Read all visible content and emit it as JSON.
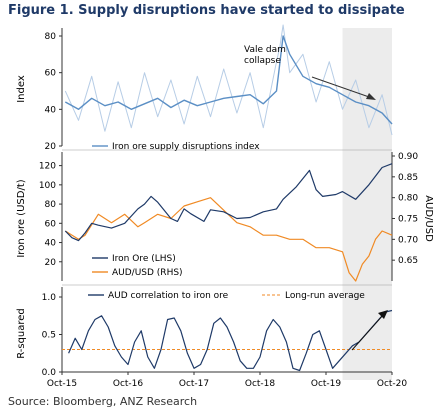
{
  "figure_title": "Figure 1. Supply disruptions have started to dissipate",
  "source": "Source: Bloomberg, ANZ Research",
  "chart_data": [
    {
      "type": "line",
      "ylabel": "Index",
      "ylim": [
        20,
        80
      ],
      "yticks": [
        "80",
        "60",
        "40",
        "20"
      ],
      "legend": [
        {
          "name": "Iron ore supply disruptions index",
          "color": "#5b8fc5"
        }
      ],
      "annotation": "Vale dam\ncollapse",
      "series": [
        {
          "name": "Iron ore supply disruptions index",
          "color": "#5b8fc5",
          "x": [
            2015.8,
            2016.0,
            2016.2,
            2016.4,
            2016.6,
            2016.8,
            2017.0,
            2017.2,
            2017.4,
            2017.6,
            2017.8,
            2018.0,
            2018.2,
            2018.4,
            2018.6,
            2018.8,
            2019.0,
            2019.05,
            2019.1,
            2019.2,
            2019.4,
            2019.6,
            2019.8,
            2020.0,
            2020.2,
            2020.4,
            2020.6,
            2020.75
          ],
          "y": [
            44,
            40,
            46,
            42,
            44,
            40,
            43,
            46,
            41,
            45,
            42,
            44,
            46,
            47,
            48,
            43,
            50,
            65,
            80,
            70,
            58,
            54,
            52,
            48,
            44,
            42,
            38,
            32
          ]
        },
        {
          "name": "raw",
          "color": "#b7cde6",
          "x": [
            2015.8,
            2016.0,
            2016.2,
            2016.4,
            2016.6,
            2016.8,
            2017.0,
            2017.2,
            2017.4,
            2017.6,
            2017.8,
            2018.0,
            2018.2,
            2018.4,
            2018.6,
            2018.8,
            2019.0,
            2019.05,
            2019.1,
            2019.2,
            2019.4,
            2019.6,
            2019.8,
            2020.0,
            2020.2,
            2020.4,
            2020.6,
            2020.75
          ],
          "y": [
            50,
            34,
            58,
            28,
            55,
            30,
            60,
            36,
            56,
            32,
            58,
            36,
            62,
            38,
            60,
            30,
            66,
            74,
            86,
            60,
            70,
            44,
            66,
            40,
            56,
            30,
            48,
            26
          ]
        }
      ]
    },
    {
      "type": "line",
      "ylabel": "Iron ore (USD/t)",
      "y2label": "AUD/USD",
      "ylim": [
        0,
        130
      ],
      "y2lim": [
        0.6,
        0.9
      ],
      "yticks": [
        "120",
        "100",
        "80",
        "60",
        "40",
        "20"
      ],
      "y2ticks": [
        "0.90",
        "0.85",
        "0.80",
        "0.75",
        "0.70",
        "0.65"
      ],
      "legend": [
        {
          "name": "Iron Ore (LHS)",
          "color": "#1f3a68"
        },
        {
          "name": "AUD/USD (RHS)",
          "color": "#f08a24"
        }
      ],
      "series": [
        {
          "name": "Iron Ore (LHS)",
          "axis": "left",
          "color": "#1f3a68",
          "x": [
            2015.8,
            2015.9,
            2016.0,
            2016.1,
            2016.2,
            2016.3,
            2016.5,
            2016.7,
            2016.9,
            2017.0,
            2017.1,
            2017.2,
            2017.4,
            2017.5,
            2017.6,
            2017.7,
            2017.9,
            2018.0,
            2018.2,
            2018.4,
            2018.6,
            2018.8,
            2019.0,
            2019.1,
            2019.3,
            2019.5,
            2019.6,
            2019.7,
            2019.9,
            2020.0,
            2020.2,
            2020.4,
            2020.6,
            2020.75
          ],
          "y": [
            52,
            45,
            42,
            50,
            60,
            58,
            55,
            60,
            75,
            80,
            88,
            82,
            65,
            62,
            75,
            70,
            62,
            74,
            72,
            65,
            66,
            72,
            75,
            85,
            98,
            115,
            95,
            88,
            90,
            93,
            85,
            100,
            118,
            122
          ]
        },
        {
          "name": "AUD/USD (RHS)",
          "axis": "right",
          "color": "#f08a24",
          "x": [
            2015.8,
            2016.0,
            2016.1,
            2016.3,
            2016.5,
            2016.7,
            2016.9,
            2017.0,
            2017.2,
            2017.4,
            2017.6,
            2017.8,
            2018.0,
            2018.2,
            2018.4,
            2018.6,
            2018.8,
            2019.0,
            2019.2,
            2019.4,
            2019.6,
            2019.8,
            2020.0,
            2020.1,
            2020.2,
            2020.3,
            2020.4,
            2020.5,
            2020.6,
            2020.75
          ],
          "y": [
            0.72,
            0.7,
            0.71,
            0.76,
            0.74,
            0.76,
            0.73,
            0.74,
            0.76,
            0.75,
            0.78,
            0.79,
            0.8,
            0.77,
            0.74,
            0.73,
            0.71,
            0.71,
            0.7,
            0.7,
            0.68,
            0.68,
            0.67,
            0.62,
            0.6,
            0.64,
            0.66,
            0.7,
            0.72,
            0.71
          ]
        }
      ]
    },
    {
      "type": "line",
      "ylabel": "R-squared",
      "ylim": [
        0,
        1
      ],
      "yticks": [
        "1.0",
        "0.5",
        "0.0"
      ],
      "xticks": [
        "Oct-15",
        "Oct-16",
        "Oct-17",
        "Oct-18",
        "Oct-19",
        "Oct-20"
      ],
      "xlim": [
        2015.75,
        2020.75
      ],
      "legend": [
        {
          "name": "AUD correlation to iron ore",
          "color": "#1f3a68"
        },
        {
          "name": "Long-run average",
          "color": "#f08a24"
        }
      ],
      "long_run_average": 0.3,
      "series": [
        {
          "name": "AUD correlation to iron ore",
          "color": "#1f3a68",
          "x": [
            2015.85,
            2015.95,
            2016.05,
            2016.15,
            2016.25,
            2016.35,
            2016.45,
            2016.55,
            2016.65,
            2016.75,
            2016.85,
            2016.95,
            2017.05,
            2017.15,
            2017.25,
            2017.35,
            2017.45,
            2017.55,
            2017.65,
            2017.75,
            2017.85,
            2017.95,
            2018.05,
            2018.15,
            2018.25,
            2018.35,
            2018.45,
            2018.55,
            2018.65,
            2018.75,
            2018.85,
            2018.95,
            2019.05,
            2019.15,
            2019.25,
            2019.35,
            2019.45,
            2019.55,
            2019.65,
            2019.75,
            2019.85,
            2019.95,
            2020.05,
            2020.15,
            2020.25,
            2020.35,
            2020.45,
            2020.55,
            2020.65,
            2020.75
          ],
          "y": [
            0.25,
            0.45,
            0.3,
            0.55,
            0.7,
            0.75,
            0.6,
            0.35,
            0.2,
            0.1,
            0.4,
            0.55,
            0.2,
            0.05,
            0.3,
            0.7,
            0.72,
            0.55,
            0.25,
            0.05,
            0.1,
            0.3,
            0.65,
            0.72,
            0.6,
            0.4,
            0.15,
            0.05,
            0.05,
            0.2,
            0.55,
            0.7,
            0.6,
            0.4,
            0.05,
            0.02,
            0.25,
            0.5,
            0.55,
            0.3,
            0.05,
            0.15,
            0.25,
            0.35,
            0.4,
            0.5,
            0.6,
            0.7,
            0.8,
            0.82
          ]
        }
      ]
    }
  ],
  "shaded_region": {
    "from": 2020.0,
    "to": 2020.75,
    "color": "#ececec"
  }
}
